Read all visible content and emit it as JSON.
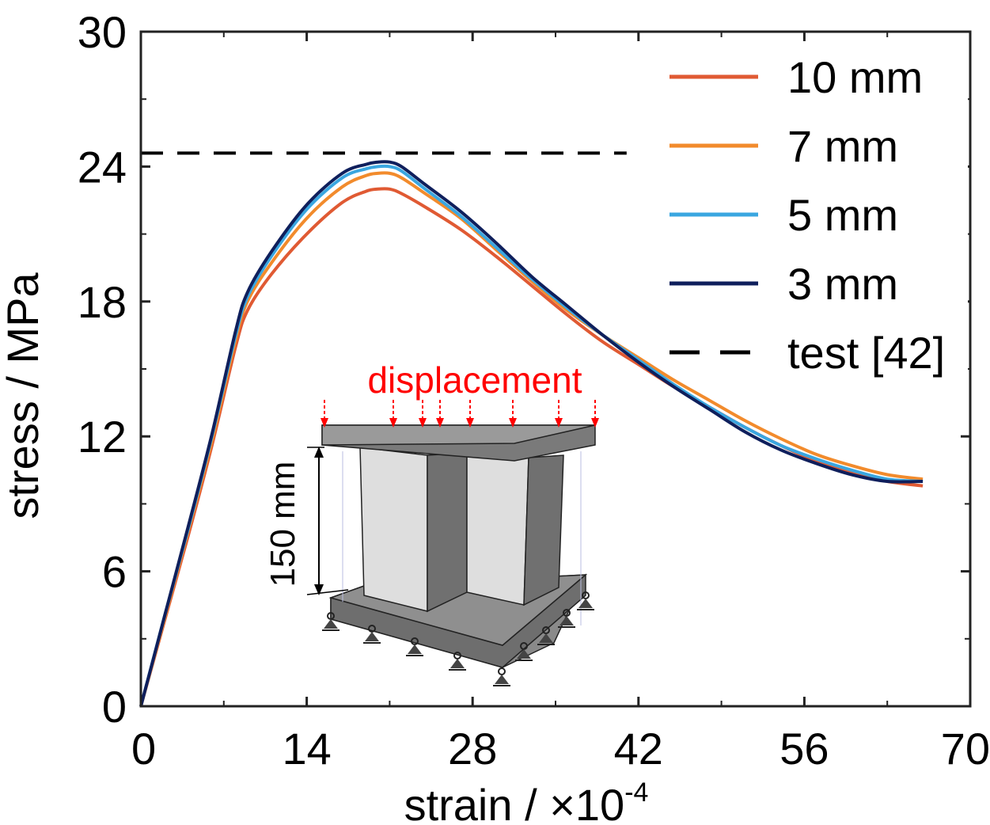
{
  "chart_data": {
    "type": "line",
    "xlabel": "strain / ×10",
    "xlabel_exponent": "-4",
    "ylabel": "stress / MPa",
    "xlim": [
      0,
      70
    ],
    "ylim": [
      0,
      30
    ],
    "x_ticks": [
      0,
      14,
      28,
      42,
      56,
      70
    ],
    "y_ticks": [
      0,
      6,
      12,
      18,
      24,
      30
    ],
    "grid": false,
    "legend": "top-right",
    "series": [
      {
        "name": "10 mm",
        "color": "#e05a33",
        "style": "solid",
        "x": [
          0,
          2,
          4,
          6,
          8,
          9,
          11,
          14,
          17,
          19,
          20,
          21,
          22,
          24,
          27,
          30,
          33,
          36,
          39,
          42,
          45,
          48,
          51,
          54,
          57,
          60,
          63,
          66
        ],
        "y": [
          0,
          3.8,
          7.6,
          11.6,
          16.0,
          17.6,
          19.2,
          21.0,
          22.4,
          22.9,
          23.0,
          23.0,
          22.8,
          22.2,
          21.2,
          20.0,
          18.7,
          17.4,
          16.2,
          15.2,
          14.2,
          13.3,
          12.4,
          11.6,
          10.9,
          10.4,
          10.0,
          9.8
        ]
      },
      {
        "name": "7 mm",
        "color": "#f28b2c",
        "style": "solid",
        "x": [
          0,
          2,
          4,
          6,
          8,
          9,
          11,
          14,
          17,
          19,
          20,
          21,
          22,
          24,
          27,
          30,
          33,
          36,
          39,
          42,
          45,
          48,
          51,
          54,
          57,
          60,
          63,
          66
        ],
        "y": [
          0,
          3.9,
          7.8,
          11.8,
          16.3,
          18.0,
          19.7,
          21.7,
          23.1,
          23.6,
          23.7,
          23.7,
          23.5,
          22.8,
          21.7,
          20.3,
          18.9,
          17.6,
          16.5,
          15.5,
          14.5,
          13.6,
          12.7,
          11.9,
          11.2,
          10.7,
          10.3,
          10.1
        ]
      },
      {
        "name": "5 mm",
        "color": "#3aa6e0",
        "style": "solid",
        "x": [
          0,
          2,
          4,
          6,
          8,
          9,
          11,
          14,
          17,
          19,
          20,
          21,
          22,
          24,
          27,
          30,
          33,
          36,
          39,
          42,
          45,
          48,
          51,
          54,
          57,
          60,
          63,
          66
        ],
        "y": [
          0,
          4.0,
          7.9,
          12.0,
          16.5,
          18.2,
          20.0,
          22.1,
          23.5,
          23.9,
          24.0,
          24.0,
          23.8,
          23.0,
          21.8,
          20.4,
          19.0,
          17.7,
          16.5,
          15.4,
          14.3,
          13.3,
          12.4,
          11.6,
          11.0,
          10.5,
          10.1,
          10.0
        ]
      },
      {
        "name": "3 mm",
        "color": "#0f1f5c",
        "style": "solid",
        "x": [
          0,
          2,
          4,
          6,
          8,
          9,
          11,
          14,
          17,
          19,
          20,
          21,
          22,
          24,
          27,
          30,
          33,
          36,
          39,
          42,
          45,
          48,
          51,
          54,
          57,
          60,
          63,
          66
        ],
        "y": [
          0,
          4.0,
          8.0,
          12.1,
          16.7,
          18.4,
          20.2,
          22.3,
          23.7,
          24.1,
          24.2,
          24.2,
          24.0,
          23.2,
          22.0,
          20.6,
          19.1,
          17.8,
          16.5,
          15.3,
          14.2,
          13.2,
          12.2,
          11.4,
          10.8,
          10.3,
          10.0,
          10.0
        ]
      }
    ],
    "reference_lines": [
      {
        "name": "test [42]",
        "color": "#000000",
        "style": "dashed",
        "x": [
          0,
          41
        ],
        "y": [
          24.6,
          24.6
        ]
      }
    ],
    "inset": {
      "label": "displacement",
      "dimension": "150 mm",
      "label_color": "#ff0000"
    }
  }
}
